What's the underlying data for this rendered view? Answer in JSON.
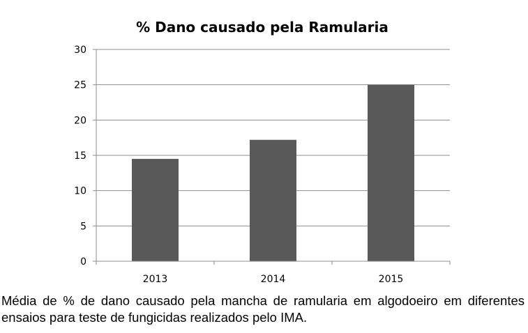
{
  "chart_data": {
    "type": "bar",
    "title": "% Dano causado pela Ramularia",
    "categories": [
      "2013",
      "2014",
      "2015"
    ],
    "values": [
      14.5,
      17.2,
      25
    ],
    "xlabel": "",
    "ylabel": "",
    "ylim": [
      0,
      30
    ],
    "yticks": [
      0,
      5,
      10,
      15,
      20,
      25,
      30
    ],
    "grid": true,
    "legend": "none",
    "bar_color": "#595959",
    "grid_color": "#8c8c8c",
    "axis_color": "#8c8c8c"
  },
  "caption": "Média de % de dano causado pela mancha de ramularia em algodoeiro em diferentes ensaios para teste de fungicidas realizados pelo IMA."
}
